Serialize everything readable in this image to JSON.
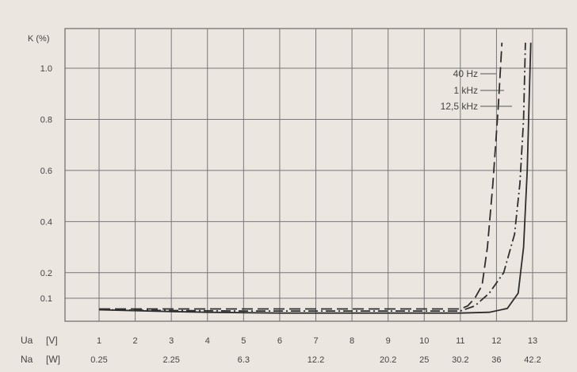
{
  "chart_data": {
    "type": "line",
    "y_axis": {
      "label": "K (%)",
      "ticks": [
        {
          "value": 0.1,
          "label": "0.1"
        },
        {
          "value": 0.2,
          "label": "0.2"
        },
        {
          "value": 0.4,
          "label": "0.4"
        },
        {
          "value": 0.6,
          "label": "0.6"
        },
        {
          "value": 0.8,
          "label": "0.8"
        },
        {
          "value": 1.0,
          "label": "1.0"
        }
      ],
      "ylim": [
        0,
        1.12
      ]
    },
    "x_axis_ua": {
      "label": "Ua",
      "unit": "[V]",
      "ticks": [
        "1",
        "2",
        "3",
        "4",
        "5",
        "6",
        "7",
        "8",
        "9",
        "10",
        "11",
        "12",
        "13"
      ],
      "xlim": [
        0,
        14
      ]
    },
    "x_axis_na": {
      "label": "Na",
      "unit": "[W]",
      "ticks": [
        {
          "ua": 1,
          "label": "0.25"
        },
        {
          "ua": 3,
          "label": "2.25"
        },
        {
          "ua": 5,
          "label": "6.3"
        },
        {
          "ua": 7,
          "label": "12.2"
        },
        {
          "ua": 9,
          "label": "20.2"
        },
        {
          "ua": 10,
          "label": "25"
        },
        {
          "ua": 11,
          "label": "30.2"
        },
        {
          "ua": 12,
          "label": "36"
        },
        {
          "ua": 13,
          "label": "42.2"
        }
      ]
    },
    "grid": true,
    "legend_placement": "top-right",
    "series": [
      {
        "name": "40   Hz",
        "style": "dashed",
        "points": [
          [
            1,
            0.058
          ],
          [
            3,
            0.058
          ],
          [
            5,
            0.058
          ],
          [
            7,
            0.058
          ],
          [
            9,
            0.058
          ],
          [
            11,
            0.058
          ],
          [
            11.2,
            0.07
          ],
          [
            11.4,
            0.1
          ],
          [
            11.6,
            0.15
          ],
          [
            11.75,
            0.3
          ],
          [
            11.9,
            0.55
          ],
          [
            12.05,
            0.85
          ],
          [
            12.15,
            1.1
          ]
        ]
      },
      {
        "name": "1 kHz",
        "style": "dash-dot",
        "points": [
          [
            1,
            0.055
          ],
          [
            3,
            0.052
          ],
          [
            5,
            0.05
          ],
          [
            7,
            0.05
          ],
          [
            9,
            0.05
          ],
          [
            11,
            0.05
          ],
          [
            11.4,
            0.07
          ],
          [
            11.8,
            0.12
          ],
          [
            12.2,
            0.2
          ],
          [
            12.5,
            0.35
          ],
          [
            12.65,
            0.55
          ],
          [
            12.75,
            0.8
          ],
          [
            12.8,
            1.1
          ]
        ]
      },
      {
        "name": "12,5 kHz",
        "style": "solid",
        "points": [
          [
            1,
            0.055
          ],
          [
            3,
            0.048
          ],
          [
            4,
            0.045
          ],
          [
            6,
            0.042
          ],
          [
            9,
            0.042
          ],
          [
            11,
            0.042
          ],
          [
            11.8,
            0.045
          ],
          [
            12.3,
            0.06
          ],
          [
            12.6,
            0.12
          ],
          [
            12.75,
            0.3
          ],
          [
            12.85,
            0.6
          ],
          [
            12.9,
            0.85
          ],
          [
            12.95,
            1.1
          ]
        ]
      }
    ]
  }
}
